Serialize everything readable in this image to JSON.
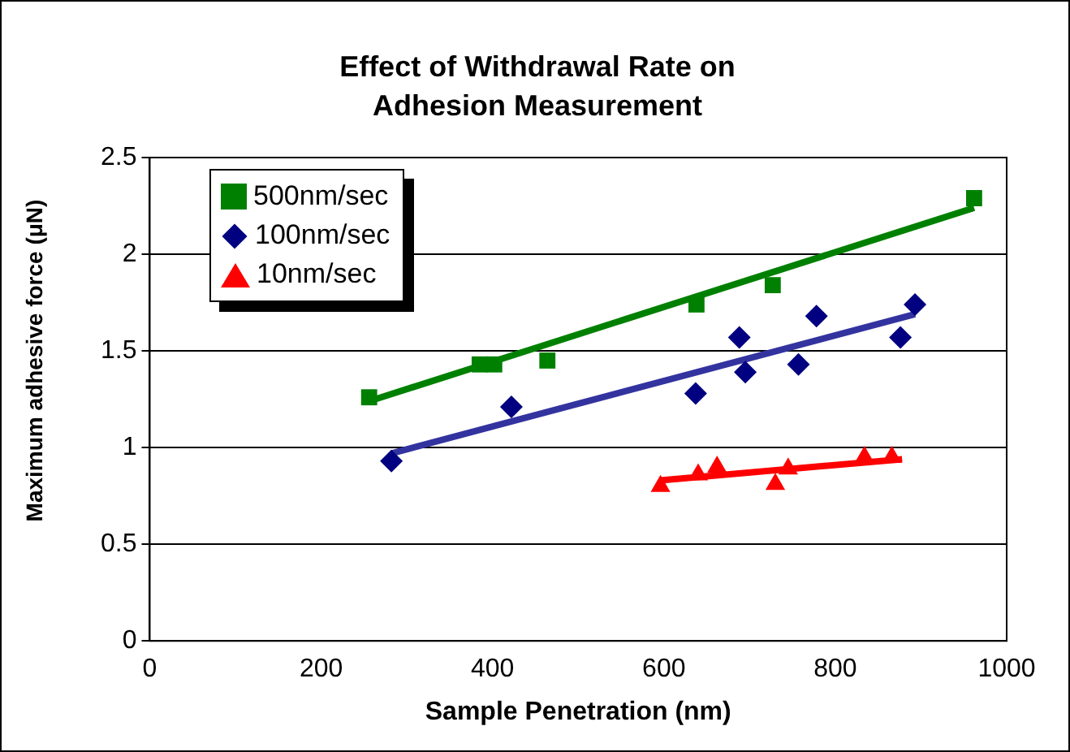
{
  "chart_data": {
    "type": "scatter",
    "title": "Effect of Withdrawal Rate on Adhesion Measurement",
    "xlabel": "Sample Penetration (nm)",
    "ylabel": "Maximum adhesive force (μN)",
    "xlim": [
      0,
      1000
    ],
    "xticks": [
      0,
      200,
      400,
      600,
      800,
      1000
    ],
    "ylim": [
      0,
      2.5
    ],
    "yticks": [
      0,
      0.5,
      1,
      1.5,
      2,
      2.5
    ],
    "grid": "y",
    "legend": "top left",
    "series": [
      {
        "name": "500nm/sec",
        "color": "#008000",
        "marker": "square",
        "x": [
          256,
          385,
          402,
          464,
          638,
          727,
          962
        ],
        "values": [
          1.26,
          1.43,
          1.43,
          1.45,
          1.74,
          1.84,
          2.29
        ]
      },
      {
        "name": "100nm/sec",
        "color": "#000080",
        "marker": "diamond",
        "x": [
          282,
          422,
          637,
          688,
          695,
          757,
          778,
          876,
          893
        ],
        "values": [
          0.93,
          1.21,
          1.28,
          1.57,
          1.39,
          1.43,
          1.68,
          1.57,
          1.74
        ]
      },
      {
        "name": "10nm/sec",
        "color": "#ff0000",
        "marker": "triangle",
        "x": [
          596,
          640,
          662,
          730,
          745,
          834,
          866
        ],
        "values": [
          0.8,
          0.86,
          0.9,
          0.81,
          0.89,
          0.95,
          0.95
        ]
      },
      {
        "type": "line",
        "color": "#008000",
        "marker": "none",
        "x": [
          256,
          962
        ],
        "values": [
          1.24,
          2.24
        ]
      },
      {
        "type": "line",
        "color": "#3333a0",
        "marker": "none",
        "x": [
          282,
          893
        ],
        "values": [
          0.97,
          1.69
        ]
      },
      {
        "type": "line",
        "color": "#ff0000",
        "marker": "none",
        "x": [
          596,
          878
        ],
        "values": [
          0.83,
          0.94
        ]
      }
    ]
  }
}
